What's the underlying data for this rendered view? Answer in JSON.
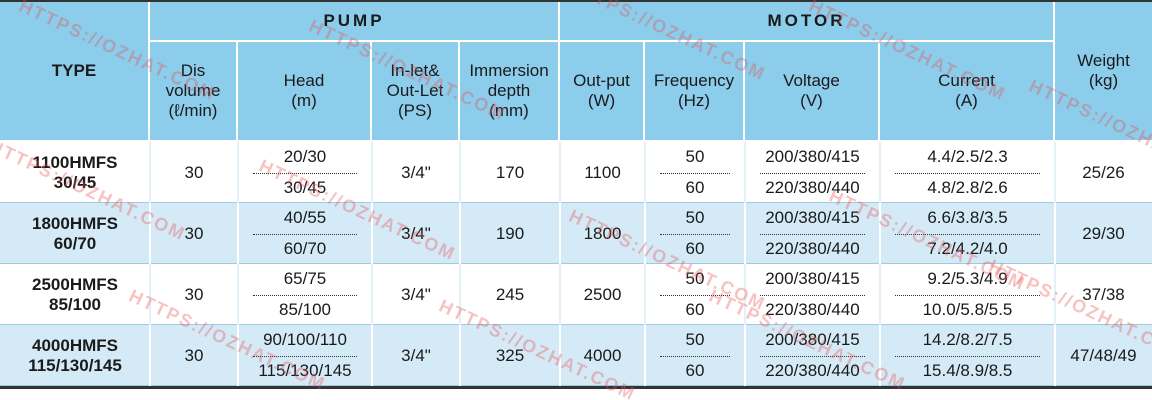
{
  "header": {
    "type": "TYPE",
    "pump": "PUMP",
    "motor": "MOTOR",
    "columns": [
      [
        "Dis",
        "volume",
        "(ℓ/min)"
      ],
      [
        "Head",
        "(m)"
      ],
      [
        "In-let&",
        "Out-Let",
        "(PS)"
      ],
      [
        "Immersion",
        "depth",
        "(mm)"
      ],
      [
        "Out-put",
        "(W)"
      ],
      [
        "Frequency",
        "(Hz)"
      ],
      [
        "Voltage",
        "(V)"
      ],
      [
        "Current",
        "(A)"
      ]
    ],
    "weight": [
      "Weight",
      "(kg)"
    ]
  },
  "rows": [
    {
      "type": [
        "1100HMFS",
        "30/45"
      ],
      "volume": "30",
      "head": [
        "20/30",
        "30/45"
      ],
      "inlet": "3/4\"",
      "immersion": "170",
      "output": "1100",
      "frequency": [
        "50",
        "60"
      ],
      "voltage": [
        "200/380/415",
        "220/380/440"
      ],
      "current": [
        "4.4/2.5/2.3",
        "4.8/2.8/2.6"
      ],
      "weight": "25/26"
    },
    {
      "type": [
        "1800HMFS",
        "60/70"
      ],
      "volume": "30",
      "head": [
        "40/55",
        "60/70"
      ],
      "inlet": "3/4\"",
      "immersion": "190",
      "output": "1800",
      "frequency": [
        "50",
        "60"
      ],
      "voltage": [
        "200/380/415",
        "220/380/440"
      ],
      "current": [
        "6.6/3.8/3.5",
        "7.2/4.2/4.0"
      ],
      "weight": "29/30"
    },
    {
      "type": [
        "2500HMFS",
        "85/100"
      ],
      "volume": "30",
      "head": [
        "65/75",
        "85/100"
      ],
      "inlet": "3/4\"",
      "immersion": "245",
      "output": "2500",
      "frequency": [
        "50",
        "60"
      ],
      "voltage": [
        "200/380/415",
        "220/380/440"
      ],
      "current": [
        "9.2/5.3/4.9",
        "10.0/5.8/5.5"
      ],
      "weight": "37/38"
    },
    {
      "type": [
        "4000HMFS",
        "115/130/145"
      ],
      "volume": "30",
      "head": [
        "90/100/110",
        "115/130/145"
      ],
      "inlet": "3/4\"",
      "immersion": "325",
      "output": "4000",
      "frequency": [
        "50",
        "60"
      ],
      "voltage": [
        "200/380/415",
        "220/380/440"
      ],
      "current": [
        "14.2/8.2/7.5",
        "15.4/8.9/8.5"
      ],
      "weight": "47/48/49"
    }
  ],
  "watermark": "HTTPS://OZHAT.COM"
}
